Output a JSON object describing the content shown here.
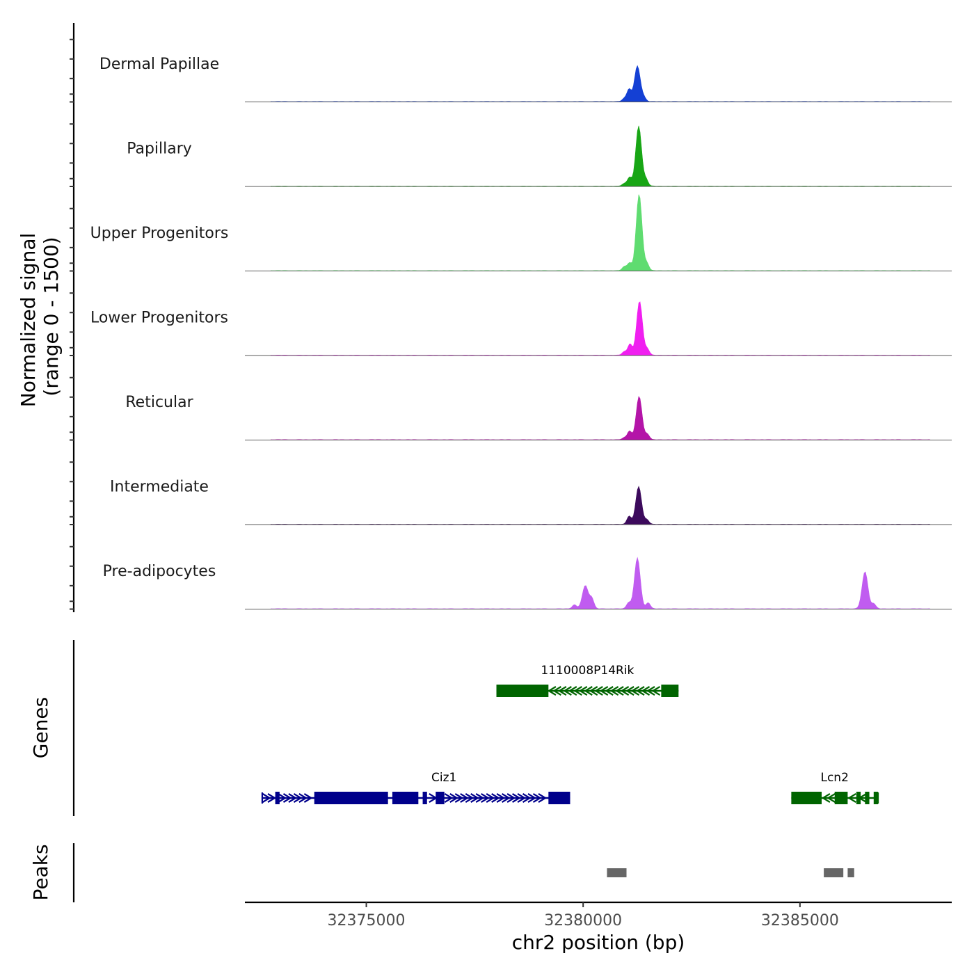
{
  "chart_data": {
    "type": "area",
    "title": "",
    "ylabel_line1": "Normalized signal",
    "ylabel_line2": "(range 0 - 1500)",
    "y_range": [
      0,
      1500
    ],
    "xlabel": "chr2 position (bp)",
    "xlim": [
      32372200,
      32388500
    ],
    "x_ticks": [
      32375000,
      32380000,
      32385000
    ],
    "x_tick_labels": [
      "32375000",
      "32380000",
      "32385000"
    ],
    "tracks": [
      {
        "name": "Dermal Papillae",
        "color": "#1440d4",
        "peaks": [
          {
            "x": 32381250,
            "height": 700
          },
          {
            "x": 32381060,
            "height": 240
          },
          {
            "x": 32381400,
            "height": 80
          },
          {
            "x": 32380950,
            "height": 60
          }
        ]
      },
      {
        "name": "Papillary",
        "color": "#18a615",
        "peaks": [
          {
            "x": 32381280,
            "height": 1180
          },
          {
            "x": 32381070,
            "height": 170
          },
          {
            "x": 32381450,
            "height": 130
          },
          {
            "x": 32380950,
            "height": 50
          }
        ]
      },
      {
        "name": "Upper Progenitors",
        "color": "#5fdc70",
        "peaks": [
          {
            "x": 32381290,
            "height": 1500
          },
          {
            "x": 32381070,
            "height": 150
          },
          {
            "x": 32381470,
            "height": 140
          },
          {
            "x": 32380950,
            "height": 80
          }
        ]
      },
      {
        "name": "Lower Progenitors",
        "color": "#f01ff0",
        "peaks": [
          {
            "x": 32381300,
            "height": 1060
          },
          {
            "x": 32381080,
            "height": 220
          },
          {
            "x": 32381480,
            "height": 120
          },
          {
            "x": 32380950,
            "height": 70
          }
        ]
      },
      {
        "name": "Reticular",
        "color": "#b414a8",
        "peaks": [
          {
            "x": 32381290,
            "height": 850
          },
          {
            "x": 32381070,
            "height": 170
          },
          {
            "x": 32381480,
            "height": 110
          },
          {
            "x": 32380950,
            "height": 40
          }
        ]
      },
      {
        "name": "Intermediate",
        "color": "#3c0a5c",
        "peaks": [
          {
            "x": 32381280,
            "height": 740
          },
          {
            "x": 32381060,
            "height": 160
          },
          {
            "x": 32381470,
            "height": 90
          }
        ]
      },
      {
        "name": "Pre-adipocytes",
        "color": "#c05cf0",
        "peaks": [
          {
            "x": 32381250,
            "height": 1000
          },
          {
            "x": 32380050,
            "height": 460
          },
          {
            "x": 32380200,
            "height": 200
          },
          {
            "x": 32386500,
            "height": 730
          },
          {
            "x": 32381050,
            "height": 120
          },
          {
            "x": 32381500,
            "height": 120
          },
          {
            "x": 32386700,
            "height": 100
          },
          {
            "x": 32379800,
            "height": 80
          }
        ]
      }
    ],
    "genes_label": "Genes",
    "genes": [
      {
        "name": "1110008P14Rik",
        "strand": "-",
        "color": "#006400",
        "start": 32378000,
        "end": 32382200,
        "exons": [
          [
            32378000,
            32379200
          ],
          [
            32381800,
            32382200
          ]
        ]
      },
      {
        "name": "Ciz1",
        "strand": "+",
        "color": "#00008b",
        "start": 32372600,
        "end": 32379700,
        "exons": [
          [
            32372900,
            32373000
          ],
          [
            32373800,
            32375500
          ],
          [
            32375600,
            32376200
          ],
          [
            32376300,
            32376400
          ],
          [
            32376600,
            32376800
          ],
          [
            32379200,
            32379700
          ]
        ]
      },
      {
        "name": "Lcn2",
        "strand": "-",
        "color": "#006400",
        "start": 32384800,
        "end": 32386800,
        "exons": [
          [
            32384800,
            32385500
          ],
          [
            32385800,
            32386100
          ],
          [
            32386300,
            32386400
          ],
          [
            32386500,
            32386600
          ],
          [
            32386700,
            32386800
          ]
        ]
      }
    ],
    "peaks_label": "Peaks",
    "peak_regions": [
      [
        32380550,
        32381000
      ],
      [
        32385550,
        32386000
      ],
      [
        32386100,
        32386250
      ]
    ]
  }
}
